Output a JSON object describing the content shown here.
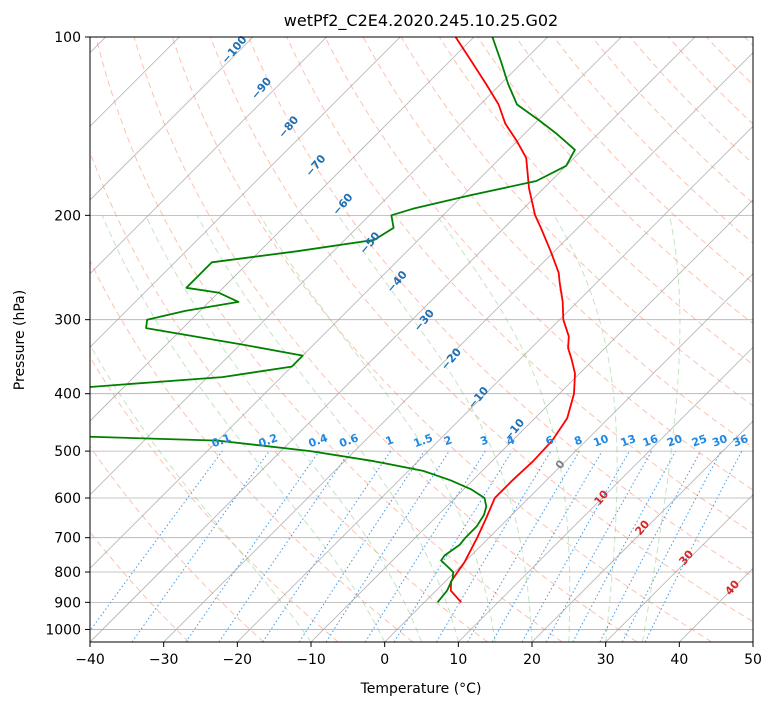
{
  "chart_data": {
    "type": "skew-t",
    "title": "wetPf2_C2E4.2020.245.10.25.G02",
    "xlabel": "Temperature (°C)",
    "ylabel": "Pressure (hPa)",
    "xlim": [
      -40,
      50
    ],
    "ylim": [
      1050,
      100
    ],
    "x_ticks": [
      -40,
      -30,
      -20,
      -10,
      0,
      10,
      20,
      30,
      40,
      50
    ],
    "y_ticks": [
      100,
      200,
      300,
      400,
      500,
      600,
      700,
      800,
      900,
      1000
    ],
    "x_tick_labels": [
      "−40",
      "−30",
      "−20",
      "−10",
      "0",
      "10",
      "20",
      "30",
      "40",
      "50"
    ],
    "y_tick_labels": [
      "100",
      "200",
      "300",
      "400",
      "500",
      "600",
      "700",
      "800",
      "900",
      "1000"
    ],
    "grid": true,
    "series": [
      {
        "key": "temperature",
        "color": "#ff0000",
        "points": [
          [
            900,
            5.0
          ],
          [
            860,
            2.0
          ],
          [
            830,
            0.8
          ],
          [
            800,
            0.4
          ],
          [
            770,
            0.0
          ],
          [
            700,
            -1.6
          ],
          [
            650,
            -3.0
          ],
          [
            600,
            -4.6
          ],
          [
            560,
            -4.6
          ],
          [
            520,
            -4.4
          ],
          [
            480,
            -4.6
          ],
          [
            440,
            -5.6
          ],
          [
            400,
            -8.0
          ],
          [
            370,
            -10.6
          ],
          [
            350,
            -13.0
          ],
          [
            335,
            -15.0
          ],
          [
            320,
            -16.5
          ],
          [
            300,
            -19.5
          ],
          [
            280,
            -22.0
          ],
          [
            260,
            -25.0
          ],
          [
            250,
            -26.5
          ],
          [
            230,
            -30.5
          ],
          [
            210,
            -35.0
          ],
          [
            200,
            -37.5
          ],
          [
            180,
            -42.0
          ],
          [
            160,
            -46.5
          ],
          [
            150,
            -50.0
          ],
          [
            140,
            -54.0
          ],
          [
            130,
            -57.5
          ],
          [
            120,
            -62.0
          ],
          [
            110,
            -67.0
          ],
          [
            100,
            -72.5
          ]
        ]
      },
      {
        "key": "dewpoint",
        "color": "#008000",
        "points": [
          [
            900,
            1.8
          ],
          [
            860,
            1.5
          ],
          [
            820,
            0.6
          ],
          [
            800,
            -0.2
          ],
          [
            780,
            -2.0
          ],
          [
            765,
            -3.4
          ],
          [
            750,
            -3.6
          ],
          [
            720,
            -3.0
          ],
          [
            700,
            -3.2
          ],
          [
            670,
            -3.2
          ],
          [
            640,
            -3.8
          ],
          [
            620,
            -4.6
          ],
          [
            600,
            -6.0
          ],
          [
            580,
            -9.0
          ],
          [
            560,
            -13.0
          ],
          [
            540,
            -18.0
          ],
          [
            520,
            -26.0
          ],
          [
            500,
            -36.0
          ],
          [
            480,
            -50.0
          ],
          [
            470,
            -75.0
          ],
          [
            390,
            -75.0
          ],
          [
            375,
            -58.0
          ],
          [
            360,
            -50.0
          ],
          [
            345,
            -50.0
          ],
          [
            330,
            -60.0
          ],
          [
            310,
            -75.0
          ],
          [
            300,
            -76.0
          ],
          [
            290,
            -72.0
          ],
          [
            280,
            -66.0
          ],
          [
            270,
            -70.0
          ],
          [
            265,
            -75.0
          ],
          [
            240,
            -75.0
          ],
          [
            230,
            -65.0
          ],
          [
            220,
            -56.0
          ],
          [
            210,
            -55.0
          ],
          [
            200,
            -57.0
          ],
          [
            195,
            -55.0
          ],
          [
            185,
            -49.0
          ],
          [
            175,
            -42.0
          ],
          [
            165,
            -40.0
          ],
          [
            155,
            -41.0
          ],
          [
            145,
            -46.0
          ],
          [
            138,
            -50.0
          ],
          [
            130,
            -55.0
          ],
          [
            120,
            -59.0
          ],
          [
            110,
            -63.0
          ],
          [
            100,
            -67.5
          ]
        ]
      }
    ],
    "reference_lines": {
      "dry_adiabat_labels": [
        "−100",
        "−90",
        "−80",
        "−70",
        "−60",
        "−50",
        "−40",
        "−30",
        "−20",
        "−10",
        "0",
        "10",
        "20",
        "30",
        "40"
      ],
      "mixing_ratio_labels": [
        "0.1",
        "0.2",
        "0.4",
        "0.6",
        "1",
        "1.5",
        "2",
        "3",
        "4",
        "6",
        "8",
        "10",
        "13",
        "16",
        "20",
        "25",
        "30",
        "36"
      ]
    }
  },
  "colors": {
    "temperature": "#ff0000",
    "dewpoint": "#008000",
    "dry_adiabat": "#fa9a7c",
    "moist_adiabat": "#8fcf8f",
    "mixing_ratio": "#1e88e5",
    "isotherm": "#9e9e9e",
    "label_blue": "#1f6fb4",
    "label_red": "#d62728",
    "label_gray": "#808080"
  }
}
